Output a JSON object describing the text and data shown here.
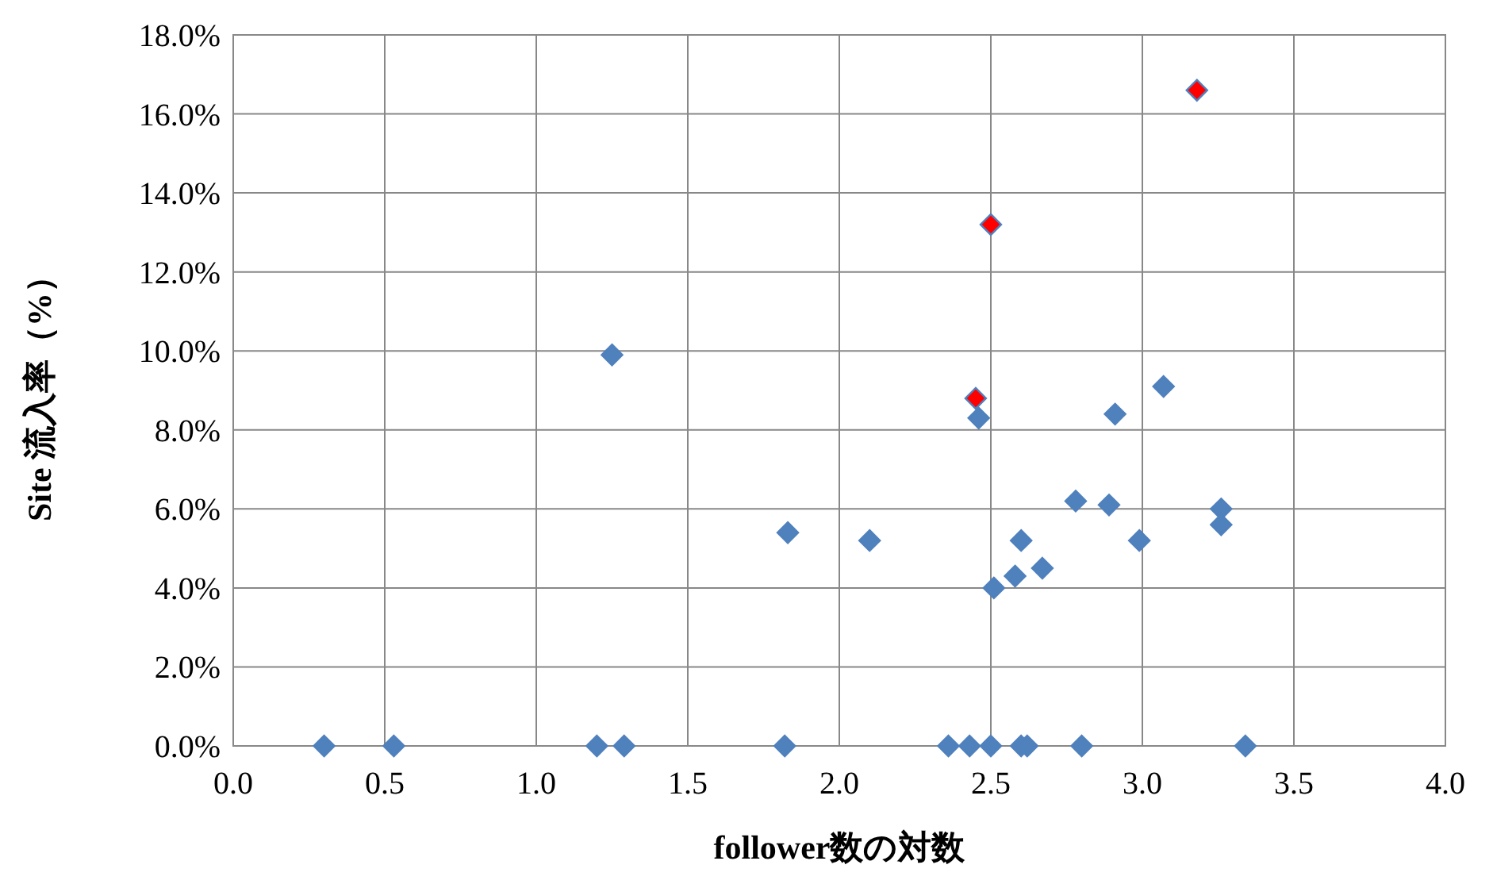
{
  "chart_data": {
    "type": "scatter",
    "xlabel": "follower数の対数",
    "ylabel": "Site 流入率（%）",
    "xlim": [
      0,
      4
    ],
    "xticks": [
      {
        "value": 0,
        "label": "0.0"
      },
      {
        "value": 0.5,
        "label": "0.5"
      },
      {
        "value": 1,
        "label": "1.0"
      },
      {
        "value": 1.5,
        "label": "1.5"
      },
      {
        "value": 2,
        "label": "2.0"
      },
      {
        "value": 2.5,
        "label": "2.5"
      },
      {
        "value": 3,
        "label": "3.0"
      },
      {
        "value": 3.5,
        "label": "3.5"
      },
      {
        "value": 4,
        "label": "4.0"
      }
    ],
    "ylim": [
      0,
      18
    ],
    "yticks": [
      {
        "value": 0,
        "label": "0.0%"
      },
      {
        "value": 2,
        "label": "2.0%"
      },
      {
        "value": 4,
        "label": "4.0%"
      },
      {
        "value": 6,
        "label": "6.0%"
      },
      {
        "value": 8,
        "label": "8.0%"
      },
      {
        "value": 10,
        "label": "10.0%"
      },
      {
        "value": 12,
        "label": "12.0%"
      },
      {
        "value": 14,
        "label": "14.0%"
      },
      {
        "value": 16,
        "label": "16.0%"
      },
      {
        "value": 18,
        "label": "18.0%"
      }
    ],
    "grid": true,
    "marker": "diamond",
    "series": [
      {
        "color": "#4f81bd",
        "x": [
          0.3,
          0.53,
          1.2,
          1.29,
          1.82,
          2.36,
          2.43,
          2.5,
          2.6,
          2.62,
          2.8,
          3.34,
          1.25,
          1.83,
          2.1,
          2.46,
          2.51,
          2.58,
          2.6,
          2.67,
          2.78,
          2.89,
          2.91,
          2.99,
          3.07,
          3.26,
          3.26
        ],
        "values": [
          0,
          0,
          0,
          0,
          0,
          0,
          0,
          0,
          0,
          0,
          0,
          0,
          9.9,
          5.4,
          5.2,
          8.3,
          4.0,
          4.3,
          5.2,
          4.5,
          6.2,
          6.1,
          8.4,
          5.2,
          9.1,
          6.0,
          5.6
        ]
      },
      {
        "color": "#ff0000",
        "x": [
          2.45,
          2.5,
          3.18
        ],
        "values": [
          8.8,
          13.2,
          16.6
        ]
      }
    ]
  }
}
